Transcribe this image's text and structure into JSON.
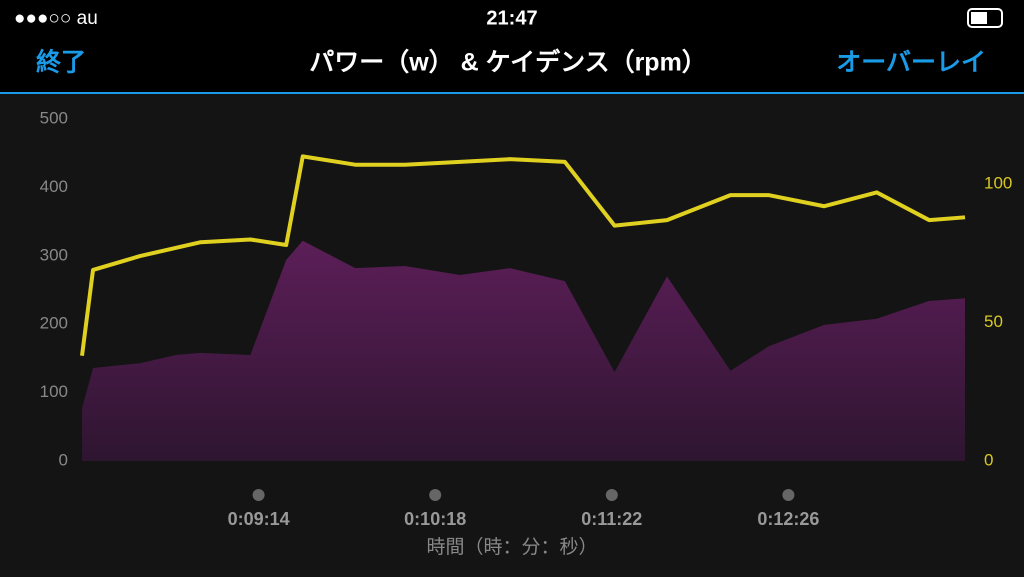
{
  "status_bar": {
    "carrier": "●●●○○ au",
    "time": "21:47"
  },
  "nav": {
    "back": "終了",
    "overlay": "オーバーレイ"
  },
  "chart_data": {
    "type": "area-line",
    "title": "パワー（w） & ケイデンス（rpm）",
    "xlabel": "時間（時：分：秒）",
    "xlim": [
      490,
      810
    ],
    "xticks": [
      {
        "value": 554,
        "label": "0:09:14"
      },
      {
        "value": 618,
        "label": "0:10:18"
      },
      {
        "value": 682,
        "label": "0:11:22"
      },
      {
        "value": 746,
        "label": "0:12:26"
      }
    ],
    "ylim": [
      0,
      500
    ],
    "yticks": [
      0,
      100,
      200,
      300,
      400,
      500
    ],
    "y2lim": [
      0,
      123.5
    ],
    "y2ticks": [
      0,
      50,
      100
    ],
    "series": [
      {
        "kind": "area",
        "color": "#5c1e58",
        "x": [
          490,
          494,
          511,
          524,
          533,
          551,
          564,
          570,
          589,
          607,
          627,
          645,
          665,
          683,
          702,
          725,
          739,
          759,
          778,
          797,
          810
        ],
        "values": [
          77,
          136,
          143,
          155,
          158,
          155,
          294,
          322,
          282,
          285,
          272,
          282,
          263,
          130,
          270,
          132,
          168,
          199,
          208,
          234,
          238
        ]
      },
      {
        "kind": "line",
        "axis": "y2",
        "color": "#e0d020",
        "x": [
          490,
          494,
          511,
          533,
          551,
          564,
          570,
          589,
          607,
          627,
          645,
          665,
          683,
          702,
          725,
          739,
          759,
          778,
          797,
          810
        ],
        "values": [
          38,
          69,
          74,
          79,
          80,
          78,
          110,
          107,
          107,
          108,
          109,
          108,
          85,
          87,
          96,
          96,
          92,
          97,
          87,
          88
        ]
      }
    ]
  }
}
